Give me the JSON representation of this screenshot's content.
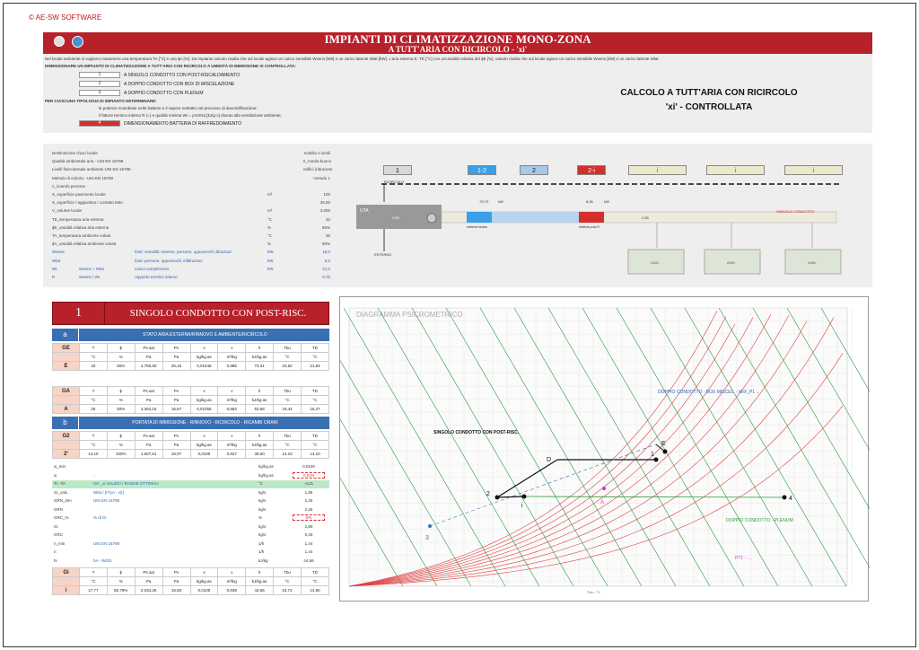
{
  "copyright": "© AE-SW SOFTWARE",
  "title": {
    "main": "IMPIANTI DI CLIMATIZZAZIONE MONO-ZONA",
    "sub": "A TUTT'ARIA CON RICIRCOLO - 'xi'"
  },
  "intro": {
    "line1": "Nel locale ambiente si vogliono mantenere una temperatura TA [°C] e una ϕA [%]. Da impianto calcolo risulta che sul locale agisce un carico sensibile Wsens [kW] e un carico latente Wlat [kW]. L'aria esterna E: TE [°C] con un'umidità relativa del ϕE [%], calcolo risulta che sul locale agisce un carico sensibile Wsens [kW] e un carico latente Wlat",
    "line2": "DIMENSIONARE UN IMPIANTO DI CLIMATIZZAZIONE A TUTT'ARIA CON RICIRCOLO A UMIDITÀ DI IMMISSIONE XI CONTROLLATA:",
    "options": [
      {
        "num": "1",
        "label": "A SINGOLO CONDOTTO CON POST-RISCALDAMENTO"
      },
      {
        "num": "2",
        "label": "A DOPPIO CONDOTTO CON BOX DI MISCELAZIONE"
      },
      {
        "num": "3",
        "label": "A DOPPIO CONDOTTO CON PLENUM"
      }
    ],
    "line3": "PER CIASCUNA TIPOLOGIA DI IMPIANTO DETERMINARE:",
    "bullet1": "le potenze scambiate nelle batterie e il vapore sottratto nel processo di deumidificazione;",
    "bullet2": "il fattore termico interno R (=) e qualità minima Wi = ρVs/Ga [kJ/g·s] dovuto alla ventilazione ambiente;",
    "extra": {
      "num": "4",
      "label": "DIMENSIONAMENTO BATTERIA DI RAFFREDDAMENTO"
    },
    "calc_title_1": "CALCOLO A TUTT'ARIA CON RICIRCOLO",
    "calc_title_2": "'xi' - CONTROLLATA"
  },
  "params": [
    {
      "label": "Destinazione d'uso locale",
      "unit": "",
      "value": "mobilio e simili",
      "blue": false
    },
    {
      "label": "Qualità ambientale aria - UNI EN 16798",
      "unit": "",
      "value": "II_medio-buono",
      "blue": false
    },
    {
      "label": "Livelli fluiscitornale ambiente UNI EN 16798",
      "unit": "",
      "value": "edifici (riduzione",
      "blue": false
    },
    {
      "label": "Metodo di calcolo - UNI EN 16798",
      "unit": "",
      "value": "metodo 1",
      "blue": false
    },
    {
      "label": "n_ricambi persone",
      "unit": "",
      "value": "",
      "blue": false
    },
    {
      "label": "S_superficie pavimento locale",
      "unit": "m²",
      "value": "100",
      "blue": false
    },
    {
      "label": "S_superficie / aggiuntiva / contatto tetto",
      "unit": "",
      "value": "30,00",
      "blue": false
    },
    {
      "label": "V_volume locale",
      "unit": "m³",
      "value": "3.000",
      "blue": false
    },
    {
      "label": "TE_temperatura aria esterna",
      "unit": "°C",
      "value": "32",
      "blue": false
    },
    {
      "label": "ϕE_umidità relativa aria esterna",
      "unit": "%",
      "value": "55%",
      "blue": false
    },
    {
      "label": "TA_temperatura ambiente voluta",
      "unit": "°C",
      "value": "26",
      "blue": false
    },
    {
      "label": "ϕA_umidità relativa ambiente voluta",
      "unit": "%",
      "value": "50%",
      "blue": false
    },
    {
      "label": "Wsens",
      "unit": "kW",
      "value": "16,0",
      "blue": true,
      "desc": "fonti: sensibili: esterne, persone, apparecchi, illuminaz."
    },
    {
      "label": "Wlat",
      "unit": "kW",
      "value": "5,0",
      "blue": true,
      "desc": "fonti: persone, apparecchi, infiltrazioni"
    },
    {
      "label": "Wt",
      "unit": "kW",
      "value": "21,0",
      "blue": true,
      "desc": "carico complessivo",
      "sub": "Wsens + Wlat"
    },
    {
      "label": "R",
      "unit": "",
      "value": "0,76",
      "blue": true,
      "desc": "rapporto termico interno",
      "sub": "Wsens / Wt"
    }
  ],
  "top_buttons": [
    {
      "label": "1",
      "bg": "#d8d8d8",
      "fg": "#111"
    },
    {
      "label": "1-2",
      "bg": "#3aa0e8",
      "fg": "#fff"
    },
    {
      "label": "2",
      "bg": "#a8c8e8",
      "fg": "#111"
    },
    {
      "label": "2-i",
      "bg": "#d32f2f",
      "fg": "#fff"
    },
    {
      "label": "i",
      "bg": "#ece8cc",
      "fg": "#555"
    },
    {
      "label": "i",
      "bg": "#ece8cc",
      "fg": "#555"
    },
    {
      "label": "i",
      "bg": "#ece8cc",
      "fg": "#555"
    }
  ],
  "schema": {
    "ricircolo": "RICIRCOLO",
    "uta": "UTA",
    "esterno": "ESTERNO",
    "flow_in": "2,65",
    "cool_kw": "-79,79",
    "cool_unit": "kW",
    "heat_kw": "8,06",
    "heat_unit": "kW",
    "cool_label": "batteria fredda",
    "heat_label": "batteria post-R",
    "flow_out": "2,65",
    "duct_label": "SINGOLO CONDOTTO",
    "amb_labels": [
      "AMB.",
      "AMB.",
      "AMB."
    ]
  },
  "panel": {
    "num": "1",
    "title": "SINGOLO CONDOTTO CON POST-RISC.",
    "sec_a": {
      "letter": "a",
      "title": "STATO ARIA ESTERNA/RINNOVO E AMBIENTE/RICIRCOLO"
    },
    "col_headers": [
      "T",
      "ϕ",
      "Ps.sat",
      "Pv",
      "x",
      "v",
      "h",
      "Tbu",
      "TD"
    ],
    "col_units": [
      "°C",
      "%",
      "Pa",
      "Pa",
      "kg/kg.as",
      "m³/kg",
      "kJ/kg.as",
      "°C",
      "°C"
    ],
    "row_E": {
      "key": "E",
      "head": "GE",
      "values": [
        "32",
        "55%",
        "4.755,60",
        "26,15",
        "0,01648",
        "0,886",
        "74,31",
        "24,92",
        "21,84"
      ]
    },
    "row_A": {
      "key": "A",
      "head": "GA",
      "values": [
        "26",
        "50%",
        "3.363,16",
        "16,87",
        "0,01056",
        "0,863",
        "53,58",
        "19,44",
        "16,27"
      ]
    },
    "sec_b": {
      "letter": "b",
      "title": "PORTATA DI IMMISSIONE - RINNOVO - RICIRCOLO - RICAMBI ORARI"
    },
    "row_2": {
      "key": "2'",
      "head": "G2",
      "values": [
        "14,10",
        "100%",
        "1.607,61",
        "16,07",
        "0,0100",
        "0,827",
        "39,50",
        "14,10",
        "14,10"
      ]
    },
    "calc_lines": [
      {
        "a": "xi_min",
        "b": "",
        "c": "kg/kg.as",
        "d": "0,0100"
      },
      {
        "a": "xi",
        "b": "-",
        "c": "kg/kg.as",
        "d": "0,01N"
      },
      {
        "a": "Ti - TA",
        "b": "OK _xi VALIDO / RANGE OTTIMALI",
        "c": "°C",
        "d": "-4,21"
      },
      {
        "a": "Gi_calc.",
        "b": "Wlat / [r*(xA - xi)]",
        "c": "kg/s",
        "d": "1,85"
      },
      {
        "a": "GRN_min",
        "b": "UNI EN 16798",
        "c": "kg/s",
        "d": "2,25"
      },
      {
        "a": "GRN",
        "b": "",
        "c": "kg/s",
        "d": "2,25"
      },
      {
        "a": "GRC_%",
        "b": "% di Gi",
        "c": "%",
        "d": "0%"
      },
      {
        "a": "Gi",
        "b": "",
        "c": "kg/s",
        "d": "2,65"
      },
      {
        "a": "GRC",
        "b": "",
        "c": "kg/s",
        "d": "0,40"
      },
      {
        "a": "n_min",
        "b": "UNI EN 16798",
        "c": "1/h",
        "d": "1,44"
      },
      {
        "a": "n",
        "b": "",
        "c": "1/h",
        "d": "1,44"
      },
      {
        "a": "hi",
        "b": "hA - Wt/Gi",
        "c": "kJ/kg",
        "d": "44,66"
      }
    ],
    "row_i": {
      "key": "i",
      "head": "Gi",
      "values": [
        "17,77",
        "82,79%",
        "2.033,26",
        "16,83",
        "0,0100",
        "0,838",
        "44,65",
        "15,72",
        "14,80"
      ]
    },
    "row_i_flow": "2,65"
  },
  "chart": {
    "title": "DIAGRAMMA PSICROMETRICO",
    "xlabel": "Tbs - °C",
    "labels": {
      "single": "SINGOLO CONDOTTO CON POST-RISC.",
      "double_box": "DOPPIO CONDOTTO - BOX MISCEL. - MIX_P1 ...",
      "double_plenum": "DOPPIO CONDOTTO - PLENUM",
      "pt1": "PT1 - ...",
      "E": "E",
      "D": "D",
      "one": "1",
      "two": "2",
      "i": "i",
      "three": "3",
      "four": "4",
      "A": "A"
    }
  }
}
